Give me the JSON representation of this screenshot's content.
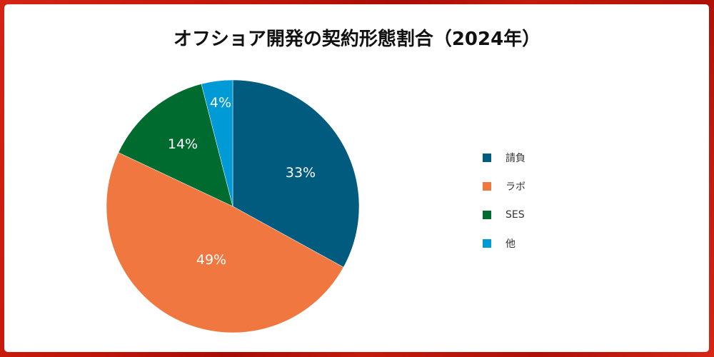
{
  "chart_data": {
    "type": "pie",
    "title": "オフショア開発の契約形態割合（2024年）",
    "categories": [
      "請負",
      "ラボ",
      "SES",
      "他"
    ],
    "values": [
      33,
      49,
      14,
      4
    ],
    "labels": [
      "33%",
      "49%",
      "14%",
      "4%"
    ],
    "colors": [
      "#005b7f",
      "#f07840",
      "#006b2e",
      "#009ad6"
    ],
    "start_angle": "top (12 o'clock), clockwise",
    "legend_position": "right"
  },
  "title": "オフショア開発の契約形態割合（2024年）",
  "legend": {
    "items": [
      {
        "label": "請負",
        "color": "#005b7f"
      },
      {
        "label": "ラボ",
        "color": "#f07840"
      },
      {
        "label": "SES",
        "color": "#006b2e"
      },
      {
        "label": "他",
        "color": "#009ad6"
      }
    ]
  },
  "slices": [
    {
      "label": "33%"
    },
    {
      "label": "49%"
    },
    {
      "label": "14%"
    },
    {
      "label": "4%"
    }
  ]
}
